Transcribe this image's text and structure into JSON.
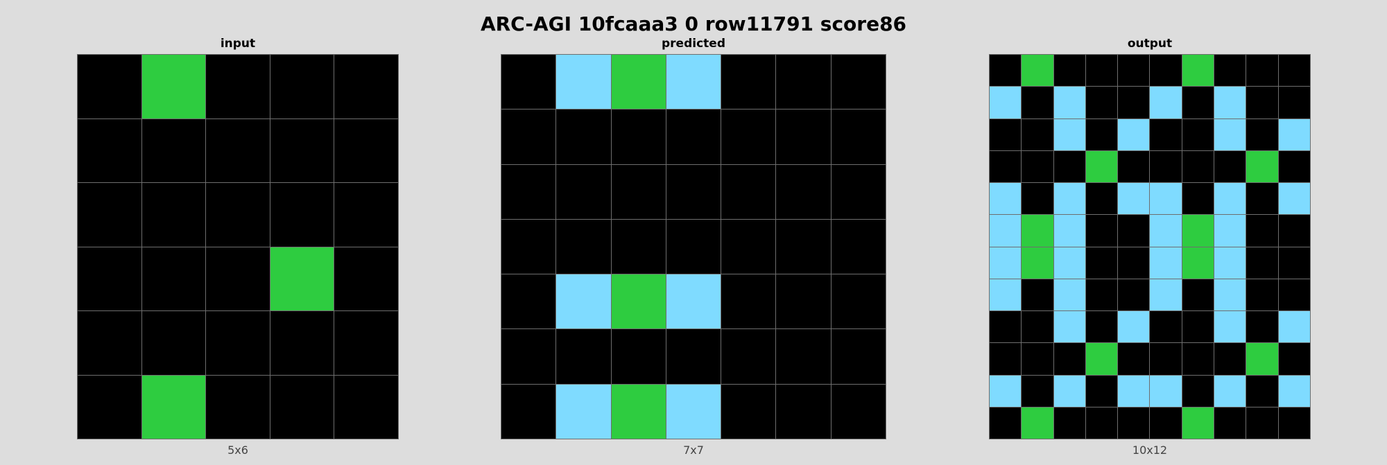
{
  "title": "ARC-AGI 10fcaaa3 0 row11791 score86",
  "colors": {
    "0": "#000000",
    "3": "#2ecc40",
    "8": "#7fdbff"
  },
  "panels": [
    {
      "id": "input",
      "title": "input",
      "size_label": "5x6",
      "grid": [
        [
          0,
          3,
          0,
          0,
          0
        ],
        [
          0,
          0,
          0,
          0,
          0
        ],
        [
          0,
          0,
          0,
          0,
          0
        ],
        [
          0,
          0,
          0,
          3,
          0
        ],
        [
          0,
          0,
          0,
          0,
          0
        ],
        [
          0,
          3,
          0,
          0,
          0
        ]
      ]
    },
    {
      "id": "predicted",
      "title": "predicted",
      "size_label": "7x7",
      "grid": [
        [
          0,
          8,
          3,
          8,
          0,
          0,
          0
        ],
        [
          0,
          0,
          0,
          0,
          0,
          0,
          0
        ],
        [
          0,
          0,
          0,
          0,
          0,
          0,
          0
        ],
        [
          0,
          0,
          0,
          0,
          0,
          0,
          0
        ],
        [
          0,
          8,
          3,
          8,
          0,
          0,
          0
        ],
        [
          0,
          0,
          0,
          0,
          0,
          0,
          0
        ],
        [
          0,
          8,
          3,
          8,
          0,
          0,
          0
        ]
      ]
    },
    {
      "id": "output",
      "title": "output",
      "size_label": "10x12",
      "grid": [
        [
          0,
          3,
          0,
          0,
          0,
          0,
          3,
          0,
          0,
          0
        ],
        [
          8,
          0,
          8,
          0,
          0,
          8,
          0,
          8,
          0,
          0
        ],
        [
          0,
          0,
          8,
          0,
          8,
          0,
          0,
          8,
          0,
          8
        ],
        [
          0,
          0,
          0,
          3,
          0,
          0,
          0,
          0,
          3,
          0
        ],
        [
          8,
          0,
          8,
          0,
          8,
          8,
          0,
          8,
          0,
          8
        ],
        [
          8,
          3,
          8,
          0,
          0,
          8,
          3,
          8,
          0,
          0
        ],
        [
          8,
          3,
          8,
          0,
          0,
          8,
          3,
          8,
          0,
          0
        ],
        [
          8,
          0,
          8,
          0,
          0,
          8,
          0,
          8,
          0,
          0
        ],
        [
          0,
          0,
          8,
          0,
          8,
          0,
          0,
          8,
          0,
          8
        ],
        [
          0,
          0,
          0,
          3,
          0,
          0,
          0,
          0,
          3,
          0
        ],
        [
          8,
          0,
          8,
          0,
          8,
          8,
          0,
          8,
          0,
          8
        ],
        [
          0,
          3,
          0,
          0,
          0,
          0,
          3,
          0,
          0,
          0
        ]
      ]
    }
  ]
}
